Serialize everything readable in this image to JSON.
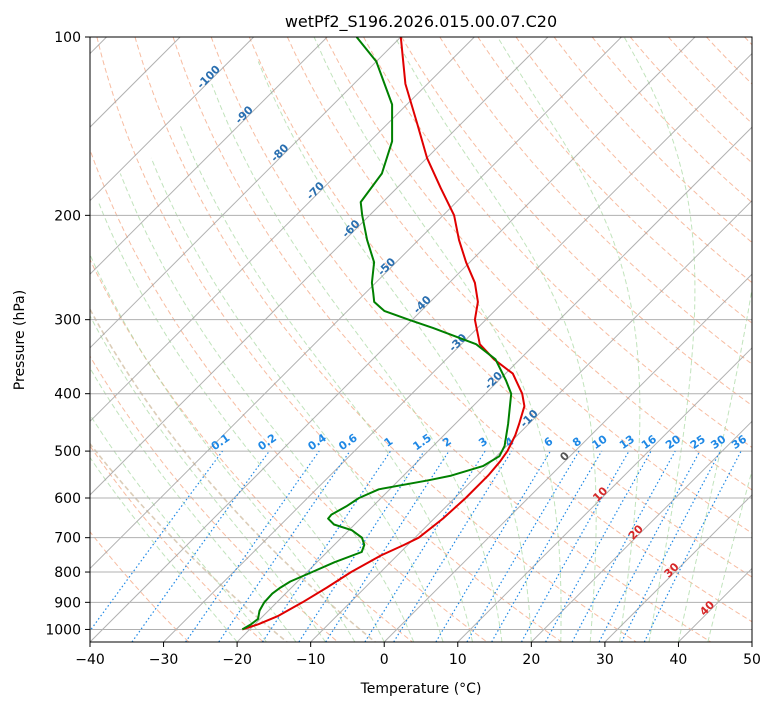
{
  "chart_data": {
    "type": "line",
    "title": "wetPf2_S196.2026.015.00.07.C20",
    "xlabel": "Temperature (°C)",
    "ylabel": "Pressure (hPa)",
    "xlim": [
      -40,
      50
    ],
    "ylim": [
      1050,
      100
    ],
    "y_scale": "log",
    "skew": true,
    "grid": true,
    "x_ticks": [
      -40,
      -30,
      -20,
      -10,
      0,
      10,
      20,
      30,
      40,
      50
    ],
    "y_ticks": [
      100,
      200,
      300,
      400,
      500,
      600,
      700,
      800,
      900,
      1000
    ],
    "series": [
      {
        "role": "temperature",
        "color": "#e00000",
        "points": [
          [
            1000,
            -21
          ],
          [
            980,
            -19.5
          ],
          [
            950,
            -18
          ],
          [
            900,
            -16.5
          ],
          [
            850,
            -15.2
          ],
          [
            800,
            -14
          ],
          [
            750,
            -12.2
          ],
          [
            720,
            -10.5
          ],
          [
            700,
            -9.5
          ],
          [
            650,
            -8.8
          ],
          [
            600,
            -8.5
          ],
          [
            550,
            -8.5
          ],
          [
            520,
            -8.8
          ],
          [
            500,
            -9.2
          ],
          [
            470,
            -10.3
          ],
          [
            450,
            -11.3
          ],
          [
            420,
            -13
          ],
          [
            400,
            -15
          ],
          [
            370,
            -19
          ],
          [
            350,
            -23.5
          ],
          [
            330,
            -27.5
          ],
          [
            300,
            -31.5
          ],
          [
            280,
            -33.5
          ],
          [
            260,
            -36.5
          ],
          [
            240,
            -40.5
          ],
          [
            220,
            -44.5
          ],
          [
            200,
            -48.5
          ],
          [
            180,
            -54
          ],
          [
            160,
            -60
          ],
          [
            140,
            -66
          ],
          [
            120,
            -73
          ],
          [
            100,
            -80
          ]
        ]
      },
      {
        "role": "dewpoint",
        "color": "#008000",
        "points": [
          [
            1000,
            -21
          ],
          [
            980,
            -20.5
          ],
          [
            960,
            -20.3
          ],
          [
            930,
            -21.2
          ],
          [
            900,
            -21.7
          ],
          [
            870,
            -21.8
          ],
          [
            850,
            -21.5
          ],
          [
            830,
            -21
          ],
          [
            800,
            -19.3
          ],
          [
            770,
            -17.6
          ],
          [
            740,
            -15.3
          ],
          [
            720,
            -15.9
          ],
          [
            700,
            -17.2
          ],
          [
            680,
            -19.6
          ],
          [
            665,
            -22.8
          ],
          [
            650,
            -24.4
          ],
          [
            640,
            -24.5
          ],
          [
            620,
            -23.6
          ],
          [
            600,
            -23
          ],
          [
            580,
            -21.5
          ],
          [
            560,
            -16
          ],
          [
            550,
            -13.5
          ],
          [
            530,
            -10.5
          ],
          [
            510,
            -9.6
          ],
          [
            490,
            -10.3
          ],
          [
            450,
            -12.8
          ],
          [
            400,
            -16.5
          ],
          [
            380,
            -19
          ],
          [
            350,
            -23.3
          ],
          [
            330,
            -28
          ],
          [
            310,
            -36
          ],
          [
            300,
            -40.5
          ],
          [
            290,
            -45
          ],
          [
            280,
            -47.6
          ],
          [
            270,
            -49
          ],
          [
            260,
            -50.5
          ],
          [
            240,
            -53
          ],
          [
            220,
            -57
          ],
          [
            200,
            -61
          ],
          [
            190,
            -63
          ],
          [
            170,
            -64
          ],
          [
            150,
            -67
          ],
          [
            130,
            -72
          ],
          [
            110,
            -80
          ],
          [
            100,
            -86
          ]
        ]
      }
    ],
    "dry_adiabat_labels": [
      "-100",
      "-90",
      "-80",
      "-70",
      "-60",
      "-50",
      "-40",
      "-30",
      "-20",
      "-10",
      "0",
      "10",
      "20",
      "30",
      "40"
    ],
    "mixing_ratio_labels": [
      "0.1",
      "0.2",
      "0.4",
      "0.6",
      "1",
      "1.5",
      "2",
      "3",
      "4",
      "6",
      "8",
      "10",
      "13",
      "16",
      "20",
      "25",
      "30",
      "36"
    ],
    "colors": {
      "temperature": "#e00000",
      "dewpoint": "#008000",
      "dry_adiabat": "#f4a582",
      "moist_adiabat": "#a6d7a0",
      "mixing_ratio": "#1e88e5",
      "isotherm": "#9e9e9e",
      "label_cold": "#2a6fb0",
      "label_warm": "#d62728",
      "label_mid": "#555555",
      "label_mixing": "#1e88e5",
      "adiabat_outer": "#d8c8b0"
    }
  }
}
